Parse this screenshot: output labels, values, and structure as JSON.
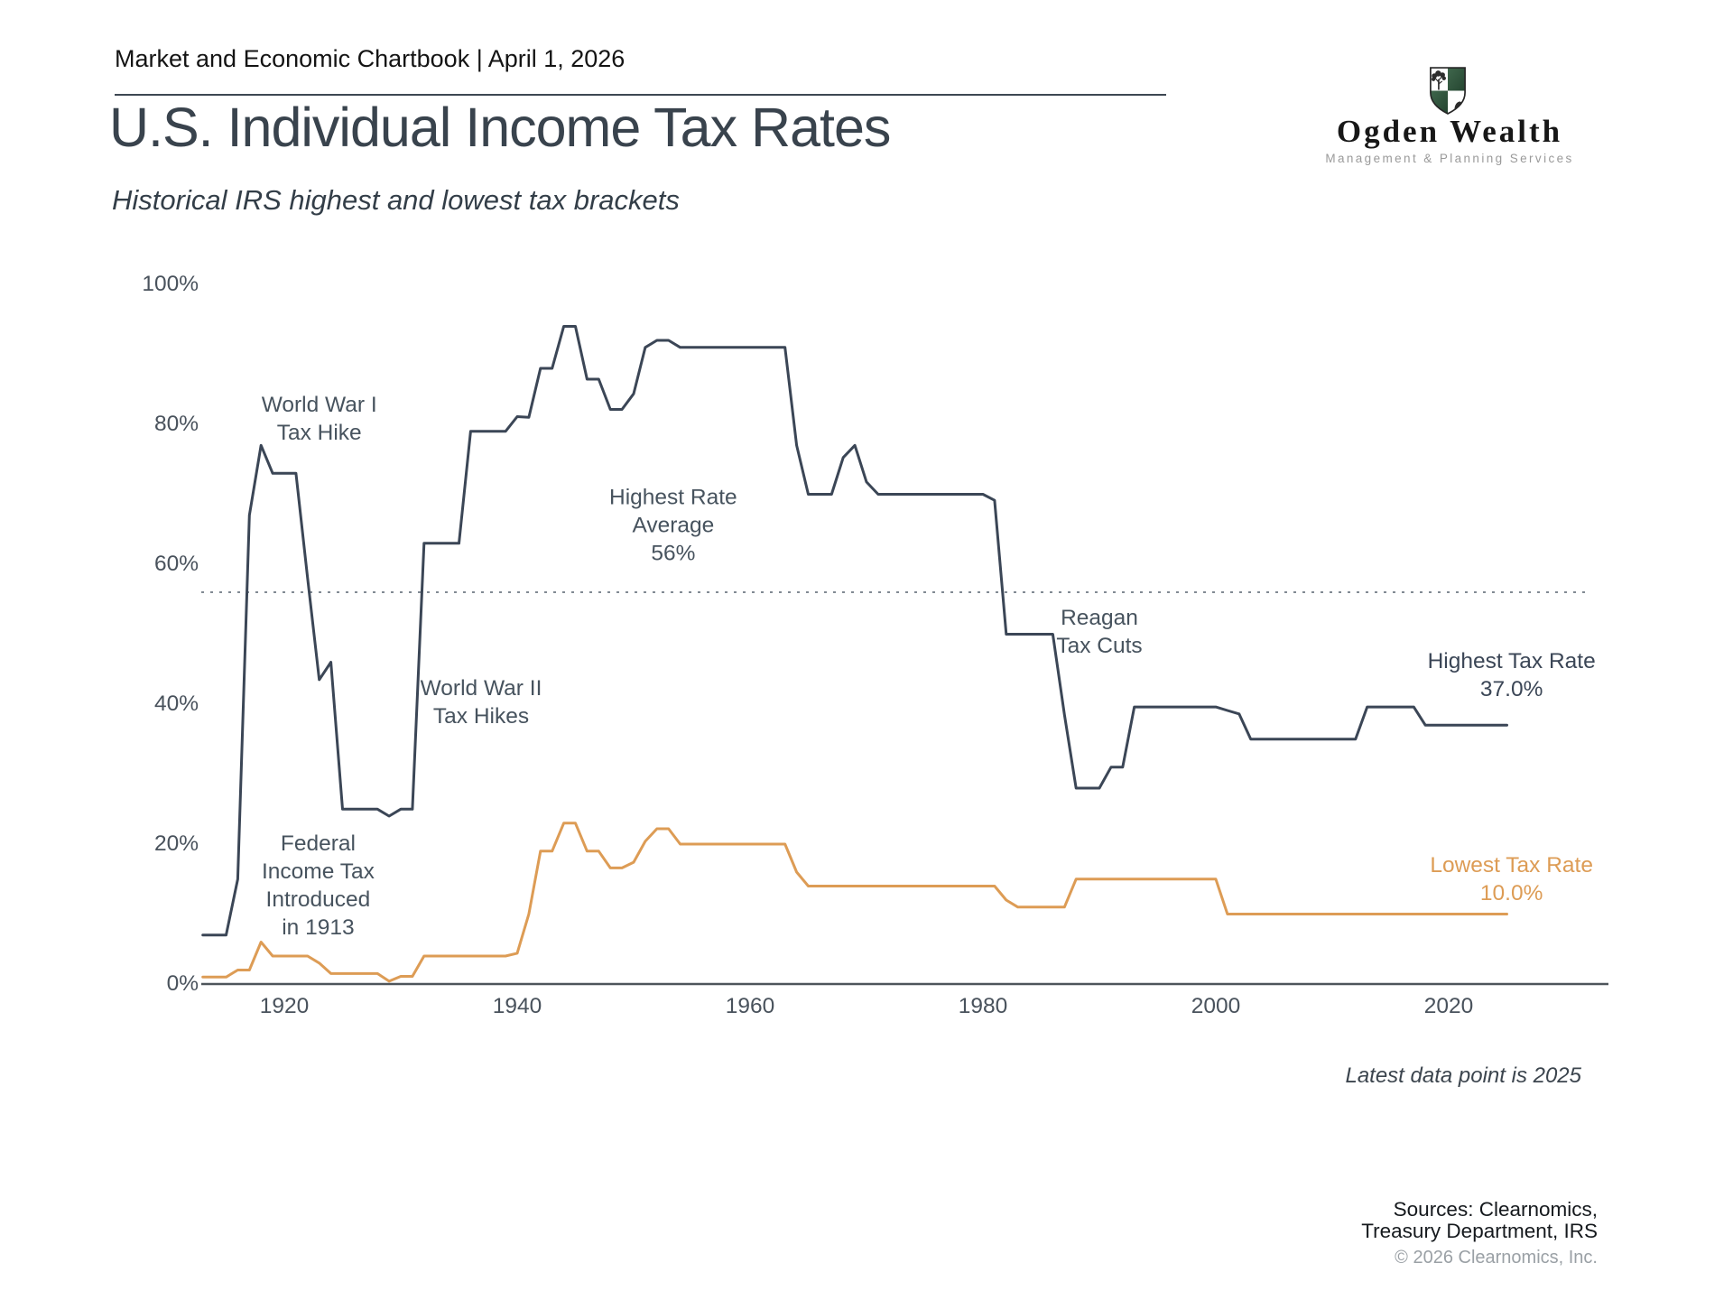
{
  "header": {
    "label": "Market and Economic Chartbook | April 1, 2026"
  },
  "logo": {
    "name": "Ogden Wealth",
    "tagline": "Management & Planning Services"
  },
  "chart_data": {
    "type": "line",
    "title": "U.S. Individual Income Tax Rates",
    "subtitle": "Historical IRS highest and lowest tax brackets",
    "xlabel": "",
    "ylabel": "",
    "xlim": [
      1913,
      2025
    ],
    "ylim": [
      0,
      100
    ],
    "grid": false,
    "legend_position": "inline-right",
    "x_ticks": [
      {
        "label": "1920",
        "year": 1920
      },
      {
        "label": "1940",
        "year": 1940
      },
      {
        "label": "1960",
        "year": 1960
      },
      {
        "label": "1980",
        "year": 1980
      },
      {
        "label": "2000",
        "year": 2000
      },
      {
        "label": "2020",
        "year": 2020
      }
    ],
    "y_ticks": [
      {
        "label": "100%",
        "value": 100
      },
      {
        "label": "80%",
        "value": 80
      },
      {
        "label": "60%",
        "value": 60
      },
      {
        "label": "40%",
        "value": 40
      },
      {
        "label": "20%",
        "value": 20
      },
      {
        "label": "0%",
        "value": 0
      }
    ],
    "average_line": {
      "value": 56,
      "style": "dotted",
      "color": "#828a93"
    },
    "series": [
      {
        "name": "Highest Tax Rate",
        "color": "#3b4656",
        "latest_value": "37.0%",
        "points": [
          [
            1913,
            7
          ],
          [
            1916,
            15
          ],
          [
            1917,
            67
          ],
          [
            1918,
            77
          ],
          [
            1919,
            73
          ],
          [
            1922,
            58
          ],
          [
            1923,
            43.5
          ],
          [
            1924,
            46
          ],
          [
            1925,
            25
          ],
          [
            1929,
            24
          ],
          [
            1930,
            25
          ],
          [
            1932,
            63
          ],
          [
            1936,
            79
          ],
          [
            1940,
            81.1
          ],
          [
            1941,
            81
          ],
          [
            1942,
            88
          ],
          [
            1944,
            94
          ],
          [
            1946,
            86.45
          ],
          [
            1948,
            82.13
          ],
          [
            1950,
            84.36
          ],
          [
            1951,
            91
          ],
          [
            1952,
            92
          ],
          [
            1954,
            91
          ],
          [
            1964,
            77
          ],
          [
            1965,
            70
          ],
          [
            1968,
            75.25
          ],
          [
            1969,
            77
          ],
          [
            1970,
            71.75
          ],
          [
            1971,
            70
          ],
          [
            1981,
            69.13
          ],
          [
            1982,
            50
          ],
          [
            1987,
            38.5
          ],
          [
            1988,
            28
          ],
          [
            1991,
            31
          ],
          [
            1993,
            39.6
          ],
          [
            2001,
            39.1
          ],
          [
            2002,
            38.6
          ],
          [
            2003,
            35
          ],
          [
            2013,
            39.6
          ],
          [
            2018,
            37
          ],
          [
            2025,
            37
          ]
        ]
      },
      {
        "name": "Lowest Tax Rate",
        "color": "#dd9c55",
        "latest_value": "10.0%",
        "points": [
          [
            1913,
            1
          ],
          [
            1916,
            2
          ],
          [
            1918,
            6
          ],
          [
            1919,
            4
          ],
          [
            1923,
            3
          ],
          [
            1924,
            1.5
          ],
          [
            1929,
            0.4
          ],
          [
            1930,
            1.1
          ],
          [
            1932,
            4
          ],
          [
            1940,
            4.4
          ],
          [
            1941,
            10
          ],
          [
            1942,
            19
          ],
          [
            1944,
            23
          ],
          [
            1946,
            19
          ],
          [
            1948,
            16.6
          ],
          [
            1950,
            17.4
          ],
          [
            1951,
            20.4
          ],
          [
            1952,
            22.2
          ],
          [
            1954,
            20
          ],
          [
            1964,
            16
          ],
          [
            1965,
            14
          ],
          [
            1982,
            12
          ],
          [
            1983,
            11
          ],
          [
            1988,
            15
          ],
          [
            2001,
            10
          ],
          [
            2025,
            10
          ]
        ]
      }
    ],
    "annotations": [
      {
        "text": "World War I\nTax Hike",
        "year": 1923.0,
        "pct": 80.8,
        "color": "slate"
      },
      {
        "text": "Federal\nIncome Tax\nIntroduced\nin 1913",
        "year": 1922.9,
        "pct": 14.1,
        "color": "slate"
      },
      {
        "text": "World War II\nTax Hikes",
        "year": 1936.9,
        "pct": 40.3,
        "color": "slate"
      },
      {
        "text": "Highest Rate\nAverage\n56%",
        "year": 1953.4,
        "pct": 65.5,
        "color": "slate"
      },
      {
        "text": "Reagan\nTax Cuts",
        "year": 1990.0,
        "pct": 50.3,
        "color": "slate"
      },
      {
        "text": "Highest Tax Rate\n37.0%",
        "year": 2025.4,
        "pct": 44.1,
        "color": "navy"
      },
      {
        "text": "Lowest Tax Rate\n10.0%",
        "year": 2025.4,
        "pct": 15.0,
        "color": "orange"
      }
    ],
    "footnote": "Latest data point is 2025"
  },
  "footer": {
    "sources": "Sources: Clearnomics,\nTreasury Department, IRS",
    "copyright": "© 2026 Clearnomics, Inc."
  }
}
